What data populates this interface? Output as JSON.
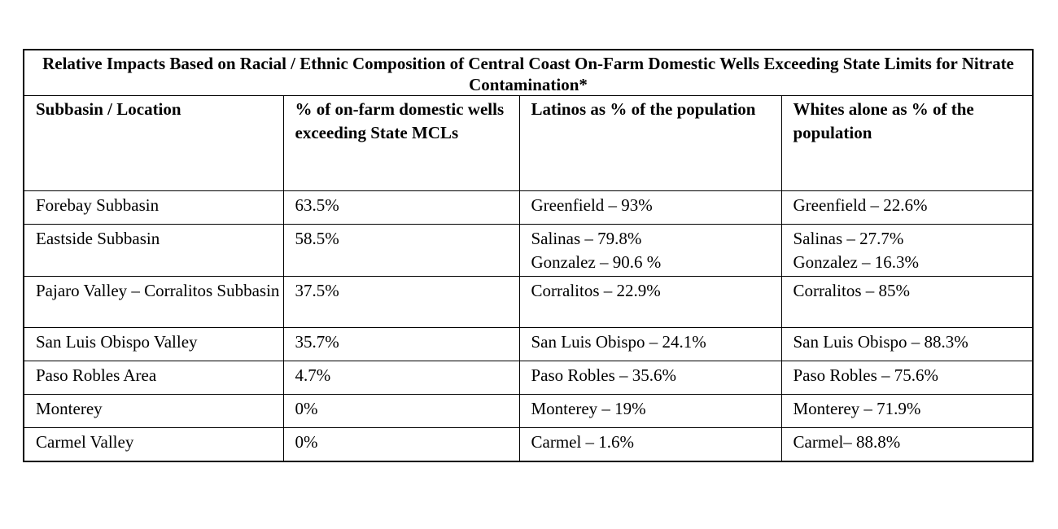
{
  "table": {
    "title": "Relative Impacts Based on Racial / Ethnic Composition of Central Coast On-Farm Domestic Wells Exceeding State Limits for Nitrate Contamination*",
    "headers": [
      "Subbasin / Location",
      "% of on-farm domestic wells exceeding State MCLs",
      "Latinos as % of the population",
      "Whites alone as % of the population"
    ],
    "rows": [
      {
        "location": "Forebay Subbasin",
        "pct_wells": "63.5%",
        "latinos": [
          "Greenfield – 93%"
        ],
        "whites": [
          "Greenfield – 22.6%"
        ]
      },
      {
        "location": "Eastside Subbasin",
        "pct_wells": "58.5%",
        "latinos": [
          "Salinas – 79.8%",
          "Gonzalez – 90.6 %"
        ],
        "whites": [
          "Salinas – 27.7%",
          "Gonzalez – 16.3%"
        ]
      },
      {
        "location": "Pajaro Valley – Corralitos Subbasin",
        "pct_wells": "37.5%",
        "latinos": [
          "Corralitos – 22.9%"
        ],
        "whites": [
          "Corralitos – 85%"
        ]
      },
      {
        "location": "San Luis Obispo Valley",
        "pct_wells": "35.7%",
        "latinos": [
          "San Luis Obispo – 24.1%"
        ],
        "whites": [
          "San Luis Obispo – 88.3%"
        ]
      },
      {
        "location": "Paso Robles Area",
        "pct_wells": "4.7%",
        "latinos": [
          "Paso Robles – 35.6%"
        ],
        "whites": [
          "Paso Robles – 75.6%"
        ]
      },
      {
        "location": "Monterey",
        "pct_wells": "0%",
        "latinos": [
          "Monterey – 19%"
        ],
        "whites": [
          "Monterey – 71.9%"
        ]
      },
      {
        "location": "Carmel Valley",
        "pct_wells": "0%",
        "latinos": [
          "Carmel – 1.6%"
        ],
        "whites": [
          "Carmel– 88.8%"
        ]
      }
    ]
  }
}
